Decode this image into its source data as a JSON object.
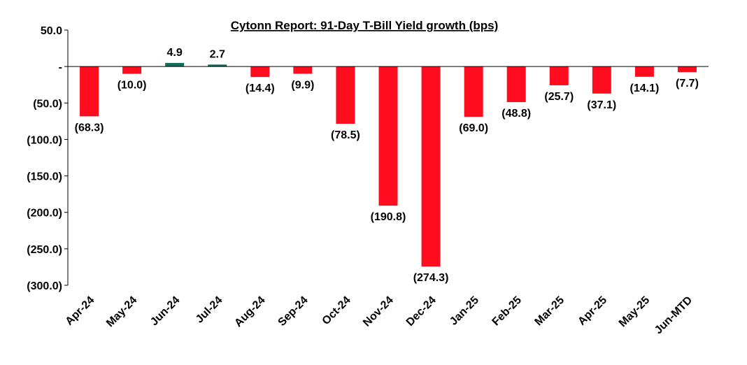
{
  "chart_data": {
    "type": "bar",
    "title": "Cytonn Report:  91-Day T-Bill Yield growth (bps)",
    "xlabel": "",
    "ylabel": "",
    "ylim": [
      -300,
      50
    ],
    "yticks": [
      50,
      0,
      -50,
      -100,
      -150,
      -200,
      -250,
      -300
    ],
    "ytick_labels": [
      "50.0",
      "-",
      "(50.0)",
      "(100.0)",
      "(150.0)",
      "(200.0)",
      "(250.0)",
      "(300.0)"
    ],
    "categories": [
      "Apr-24",
      "May-24",
      "Jun-24",
      "Jul-24",
      "Aug-24",
      "Sep-24",
      "Oct-24",
      "Nov-24",
      "Dec-24",
      "Jan-25",
      "Feb-25",
      "Mar-25",
      "Apr-25",
      "May-25",
      "Jun-MTD"
    ],
    "values": [
      -68.3,
      -10.0,
      4.9,
      2.7,
      -14.4,
      -9.9,
      -78.5,
      -190.8,
      -274.3,
      -69.0,
      -48.8,
      -25.7,
      -37.1,
      -14.1,
      -7.7
    ],
    "data_labels": [
      "(68.3)",
      "(10.0)",
      "4.9",
      "2.7",
      "(14.4)",
      "(9.9)",
      "(78.5)",
      "(190.8)",
      "(274.3)",
      "(69.0)",
      "(48.8)",
      "(25.7)",
      "(37.1)",
      "(14.1)",
      "(7.7)"
    ],
    "colors": {
      "negative": "#ff0d1f",
      "positive": "#146b5a",
      "axis": "#000000"
    },
    "grid": false,
    "legend": "none"
  }
}
